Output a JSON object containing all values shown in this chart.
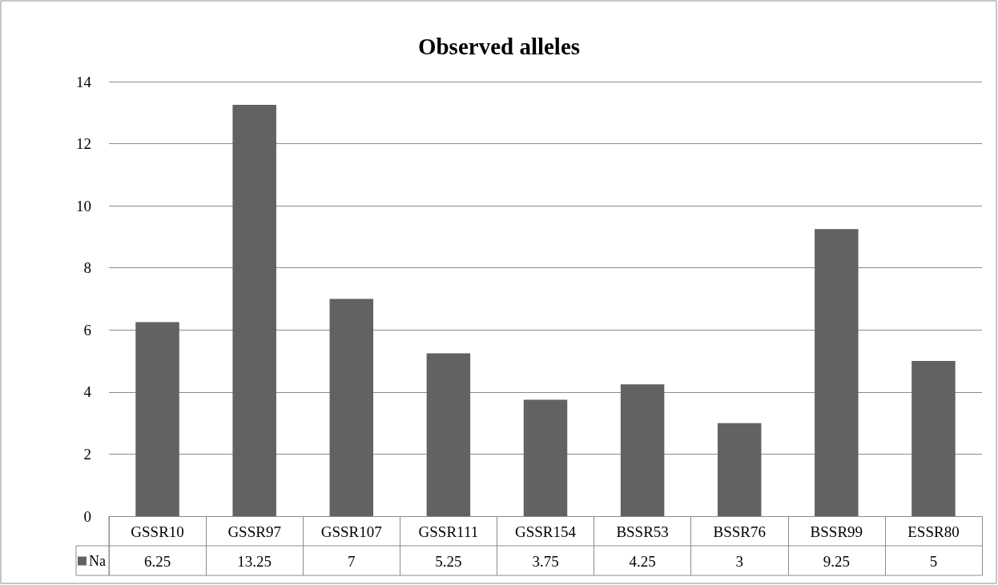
{
  "chart_data": {
    "type": "bar",
    "title": "Observed alleles",
    "categories": [
      "GSSR10",
      "GSSR97",
      "GSSR107",
      "GSSR111",
      "GSSR154",
      "BSSR53",
      "BSSR76",
      "BSSR99",
      "ESSR80"
    ],
    "series": [
      {
        "name": "Na",
        "color": "#626262",
        "values": [
          6.25,
          13.25,
          7,
          5.25,
          3.75,
          4.25,
          3,
          9.25,
          5
        ]
      }
    ],
    "ylim": [
      0,
      14
    ],
    "yticks": [
      0,
      2,
      4,
      6,
      8,
      10,
      12,
      14
    ],
    "grid": "y",
    "legend": "bottom left",
    "data_labels": true
  }
}
